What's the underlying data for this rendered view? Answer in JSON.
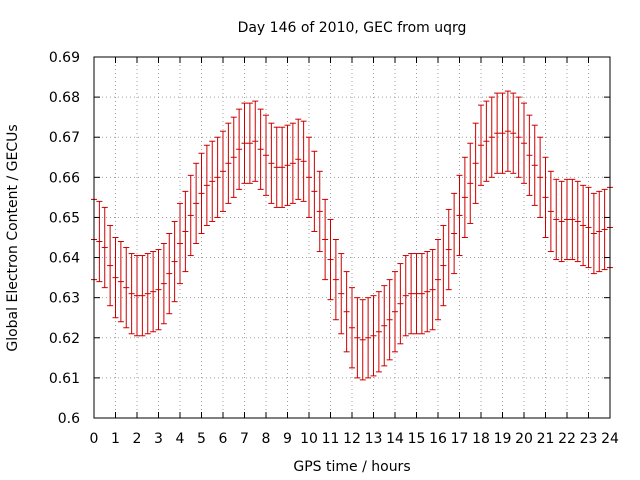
{
  "chart_data": {
    "type": "line",
    "title": "Day 146 of 2010, GEC from uqrg",
    "xlabel": "GPS time / hours",
    "ylabel": "Global Electron Content / GECUs",
    "xlim": [
      0,
      24
    ],
    "ylim": [
      0.6,
      0.69
    ],
    "x_ticks": [
      "0",
      "1",
      "2",
      "3",
      "4",
      "5",
      "6",
      "7",
      "8",
      "9",
      "10",
      "11",
      "12",
      "13",
      "14",
      "15",
      "16",
      "17",
      "18",
      "19",
      "20",
      "21",
      "22",
      "23",
      "24"
    ],
    "y_ticks": [
      "0.6",
      "0.61",
      "0.62",
      "0.63",
      "0.64",
      "0.65",
      "0.66",
      "0.67",
      "0.68",
      "0.69"
    ],
    "grid": true,
    "error_color": "#cc0000",
    "series": [
      {
        "x": [
          0,
          0.25,
          0.5,
          0.75,
          1,
          1.25,
          1.5,
          1.75,
          2,
          2.25,
          2.5,
          2.75,
          3,
          3.25,
          3.5,
          3.75,
          4,
          4.25,
          4.5,
          4.75,
          5,
          5.25,
          5.5,
          5.75,
          6,
          6.25,
          6.5,
          6.75,
          7,
          7.25,
          7.5,
          7.75,
          8,
          8.25,
          8.5,
          8.75,
          9,
          9.25,
          9.5,
          9.75,
          10,
          10.25,
          10.5,
          10.75,
          11,
          11.25,
          11.5,
          11.75,
          12,
          12.25,
          12.5,
          12.75,
          13,
          13.25,
          13.5,
          13.75,
          14,
          14.25,
          14.5,
          14.75,
          15,
          15.25,
          15.5,
          15.75,
          16,
          16.25,
          16.5,
          16.75,
          17,
          17.25,
          17.5,
          17.75,
          18,
          18.25,
          18.5,
          18.75,
          19,
          19.25,
          19.5,
          19.75,
          20,
          20.25,
          20.5,
          20.75,
          21,
          21.25,
          21.5,
          21.75,
          22,
          22.25,
          22.5,
          22.75,
          23,
          23.25,
          23.5,
          23.75,
          24
        ],
        "y": [
          0.6445,
          0.644,
          0.6425,
          0.638,
          0.635,
          0.634,
          0.6325,
          0.631,
          0.6305,
          0.6305,
          0.631,
          0.6315,
          0.632,
          0.6335,
          0.636,
          0.639,
          0.6435,
          0.6465,
          0.6505,
          0.6535,
          0.656,
          0.658,
          0.659,
          0.66,
          0.6615,
          0.6635,
          0.665,
          0.667,
          0.6685,
          0.6685,
          0.669,
          0.667,
          0.6655,
          0.6635,
          0.6625,
          0.6625,
          0.663,
          0.6635,
          0.6645,
          0.664,
          0.66,
          0.6565,
          0.6515,
          0.6445,
          0.6395,
          0.6345,
          0.631,
          0.6265,
          0.6225,
          0.62,
          0.6195,
          0.62,
          0.6205,
          0.6215,
          0.623,
          0.6245,
          0.6265,
          0.6285,
          0.6305,
          0.631,
          0.631,
          0.631,
          0.6315,
          0.632,
          0.6345,
          0.638,
          0.642,
          0.646,
          0.6505,
          0.655,
          0.6585,
          0.6635,
          0.668,
          0.669,
          0.67,
          0.671,
          0.671,
          0.6715,
          0.671,
          0.67,
          0.6685,
          0.6655,
          0.663,
          0.66,
          0.655,
          0.6515,
          0.6495,
          0.649,
          0.6495,
          0.6495,
          0.649,
          0.648,
          0.6475,
          0.646,
          0.6465,
          0.647,
          0.6475
        ],
        "error": 0.01
      }
    ]
  }
}
